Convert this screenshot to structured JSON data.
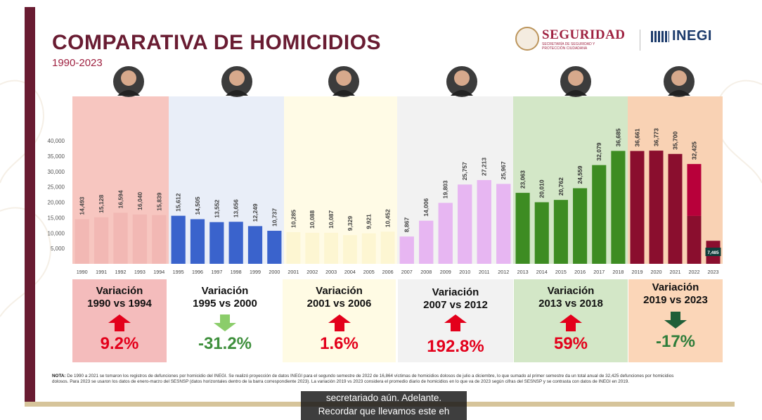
{
  "slide": {
    "title": "COMPARATIVA DE HOMICIDIOS",
    "subtitle": "1990-2023",
    "logo_seguridad": "SEGURIDAD",
    "logo_seguridad_sub": "SECRETARÍA DE SEGURIDAD Y PROTECCIÓN CIUDADANA",
    "logo_inegi": "INEGI",
    "note_label": "NOTA:",
    "note_text": "De 1990 a 2021 se tomaron los registros de defunciones por homicidio del INEGI. Se realizó proyección de datos INEGI para el segundo semestre de 2022 de 16,864 víctimas de homicidios dolosos de julio a diciembre, lo que sumado al primer semestre da un total anual de 32,425 defunciones por homicidios dolosos. Para 2023 se usaron los datos de enero-marzo del SESNSP (datos horizontales dentro de la barra correspondiente 2023). La variación 2019 vs 2023 considera el promedio diario de homicidios en lo que va de 2023 según cifras del SESNSP y se contrasta con datos de INEGI en 2019.",
    "caption_line1": "secretariado aún. Adelante.",
    "caption_line2": "Recordar que llevamos este eh"
  },
  "chart_data": {
    "type": "bar",
    "title": "COMPARATIVA DE HOMICIDIOS",
    "subtitle": "1990-2023",
    "ylim": [
      0,
      40000
    ],
    "yticks": [
      "",
      "5,000",
      "10,000",
      "15,000",
      "20,000",
      "25,000",
      "30,000",
      "35,000",
      "40,000"
    ],
    "grid": false,
    "categories": [
      "1990",
      "1991",
      "1992",
      "1993",
      "1994",
      "1995",
      "1996",
      "1997",
      "1998",
      "1999",
      "2000",
      "2001",
      "2002",
      "2003",
      "2004",
      "2005",
      "2006",
      "2007",
      "2008",
      "2009",
      "2010",
      "2011",
      "2012",
      "2013",
      "2014",
      "2015",
      "2016",
      "2017",
      "2018",
      "2019",
      "2020",
      "2021",
      "2022",
      "2023"
    ],
    "values": [
      14493,
      15128,
      16594,
      16040,
      15839,
      15612,
      14505,
      13552,
      13656,
      12249,
      10737,
      10285,
      10088,
      10087,
      9329,
      9921,
      10452,
      8867,
      14006,
      19803,
      25757,
      27213,
      25967,
      23063,
      20010,
      20762,
      24559,
      32079,
      36685,
      36661,
      36773,
      35700,
      32425,
      7485
    ],
    "value_labels": [
      "14,493",
      "15,128",
      "16,594",
      "16,040",
      "15,839",
      "15,612",
      "14,505",
      "13,552",
      "13,656",
      "12,249",
      "10,737",
      "10,285",
      "10,088",
      "10,087",
      "9,329",
      "9,921",
      "10,452",
      "8,867",
      "14,006",
      "19,803",
      "25,757",
      "27,213",
      "25,967",
      "23,063",
      "20,010",
      "20,762",
      "24,559",
      "32,079",
      "36,685",
      "36,661",
      "36,773",
      "35,700",
      "32,425",
      "7,485"
    ],
    "projection_2022_second_semester": 16864,
    "periods": [
      {
        "start": 0,
        "end": 4,
        "bar_color": "#f2b8b4",
        "bg_color": "#f7c6c0",
        "label_color": "#444444",
        "variation_title": "Variación\n1990 vs 1994",
        "variation_pct": "9.2%",
        "direction": "up",
        "pct_color": "#e3001b",
        "arrow_color": "#e3001b",
        "card_bg": "#f4bcbc"
      },
      {
        "start": 5,
        "end": 10,
        "bar_color": "#3a63cc",
        "bg_color": "#e9eef8",
        "label_color": "#444444",
        "variation_title": "Variación\n1995 vs 2000",
        "variation_pct": "-31.2%",
        "direction": "down",
        "pct_color": "#3e8f3c",
        "arrow_color": "#8bcd6a",
        "card_bg": "#ffffff"
      },
      {
        "start": 11,
        "end": 16,
        "bar_color": "#fdf6d2",
        "bg_color": "#fffbe6",
        "label_color": "#444444",
        "variation_title": "Variación\n2001 vs 2006",
        "variation_pct": "1.6%",
        "direction": "up",
        "pct_color": "#e3001b",
        "arrow_color": "#e3001b",
        "card_bg": "#fffbe4"
      },
      {
        "start": 17,
        "end": 22,
        "bar_color": "#e7b6f2",
        "bg_color": "#f2f2f2",
        "label_color": "#444444",
        "variation_title": "Variación\n2007 vs 2012",
        "variation_pct": "192.8%",
        "direction": "up",
        "pct_color": "#e3001b",
        "arrow_color": "#e3001b",
        "card_bg": "#f2f2f2"
      },
      {
        "start": 23,
        "end": 28,
        "bar_color": "#3d8c22",
        "bg_color": "#d3e7c7",
        "label_color": "#333333",
        "variation_title": "Variación\n2013 vs 2018",
        "variation_pct": "59%",
        "direction": "up",
        "pct_color": "#e3001b",
        "arrow_color": "#e3001b",
        "card_bg": "#d3e7c7"
      },
      {
        "start": 29,
        "end": 33,
        "bar_color": "#8a0e2e",
        "bg_color": "#f9d2b4",
        "label_color": "#333333",
        "variation_title": "Variación\n2019 vs 2023",
        "variation_pct": "-17%",
        "direction": "down",
        "pct_color": "#2e7d3a",
        "arrow_color": "#1f5f38",
        "card_bg": "#fbd6b8"
      }
    ]
  }
}
